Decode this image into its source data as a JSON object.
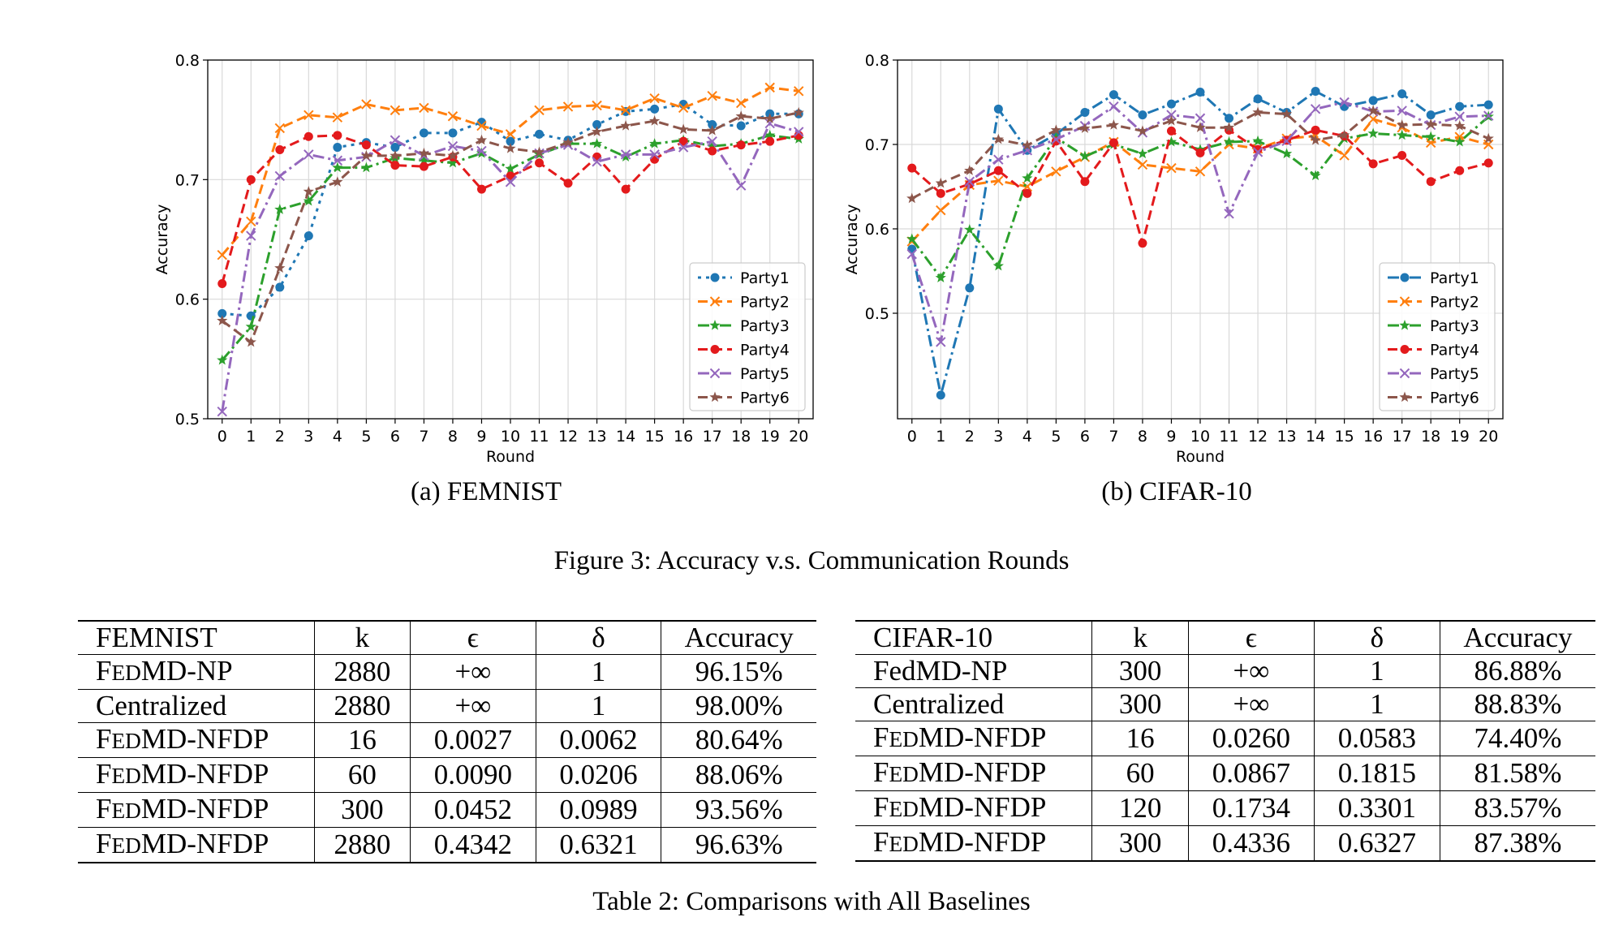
{
  "charts": {
    "a": {
      "ylabel": "Accuracy",
      "xlabel": "Round",
      "caption": "(a) FEMNIST"
    },
    "b": {
      "ylabel": "Accuracy",
      "xlabel": "Round",
      "caption": "(b) CIFAR-10"
    }
  },
  "chart_data": [
    {
      "type": "line",
      "xlabel": "Round",
      "ylabel": "Accuracy",
      "ylim": [
        0.5,
        0.8
      ],
      "yticks": [
        0.5,
        0.6,
        0.7,
        0.8
      ],
      "xlim": [
        -0.5,
        20.5
      ],
      "x": [
        0,
        1,
        2,
        3,
        4,
        5,
        6,
        7,
        8,
        9,
        10,
        11,
        12,
        13,
        14,
        15,
        16,
        17,
        18,
        19,
        20
      ],
      "grid": true,
      "legend": "bottom-right",
      "series": [
        {
          "name": "Party1",
          "color": "#1f77b4",
          "marker": "circle",
          "dash": "4 6",
          "values": [
            0.588,
            0.586,
            0.61,
            0.653,
            0.727,
            0.731,
            0.727,
            0.739,
            0.739,
            0.748,
            0.732,
            0.738,
            0.733,
            0.746,
            0.757,
            0.759,
            0.763,
            0.746,
            0.745,
            0.755,
            0.755
          ]
        },
        {
          "name": "Party2",
          "color": "#ff7f0e",
          "marker": "x",
          "dash": "12 6",
          "values": [
            0.637,
            0.665,
            0.743,
            0.754,
            0.752,
            0.763,
            0.758,
            0.76,
            0.753,
            0.745,
            0.738,
            0.758,
            0.761,
            0.762,
            0.758,
            0.768,
            0.76,
            0.77,
            0.764,
            0.777,
            0.774
          ]
        },
        {
          "name": "Party3",
          "color": "#2ca02c",
          "marker": "star",
          "dash": "14 5 3 5",
          "values": [
            0.549,
            0.577,
            0.675,
            0.682,
            0.71,
            0.71,
            0.718,
            0.716,
            0.714,
            0.722,
            0.709,
            0.721,
            0.73,
            0.73,
            0.719,
            0.73,
            0.733,
            0.728,
            0.73,
            0.737,
            0.734
          ]
        },
        {
          "name": "Party4",
          "color": "#e31a1c",
          "marker": "circle",
          "dash": "12 6",
          "values": [
            0.613,
            0.7,
            0.725,
            0.736,
            0.737,
            0.729,
            0.712,
            0.711,
            0.719,
            0.692,
            0.703,
            0.714,
            0.697,
            0.719,
            0.692,
            0.717,
            0.732,
            0.724,
            0.729,
            0.732,
            0.737
          ]
        },
        {
          "name": "Party5",
          "color": "#9467bd",
          "marker": "x",
          "dash": "14 5 3 5",
          "values": [
            0.506,
            0.653,
            0.703,
            0.721,
            0.716,
            0.719,
            0.733,
            0.72,
            0.728,
            0.724,
            0.698,
            0.722,
            0.729,
            0.715,
            0.721,
            0.721,
            0.727,
            0.732,
            0.695,
            0.747,
            0.74
          ]
        },
        {
          "name": "Party6",
          "color": "#8c564b",
          "marker": "star",
          "dash": "12 6",
          "values": [
            0.582,
            0.564,
            0.626,
            0.69,
            0.698,
            0.72,
            0.72,
            0.722,
            0.72,
            0.733,
            0.726,
            0.723,
            0.731,
            0.74,
            0.745,
            0.749,
            0.742,
            0.741,
            0.753,
            0.751,
            0.756
          ]
        }
      ]
    },
    {
      "type": "line",
      "xlabel": "Round",
      "ylabel": "Accuracy",
      "ylim": [
        0.375,
        0.8
      ],
      "yticks": [
        0.5,
        0.6,
        0.7,
        0.8
      ],
      "xlim": [
        -0.5,
        20.5
      ],
      "x": [
        0,
        1,
        2,
        3,
        4,
        5,
        6,
        7,
        8,
        9,
        10,
        11,
        12,
        13,
        14,
        15,
        16,
        17,
        18,
        19,
        20
      ],
      "grid": true,
      "legend": "bottom-right",
      "series": [
        {
          "name": "Party1",
          "color": "#1f77b4",
          "marker": "circle",
          "dash": "14 5 3 5",
          "values": [
            0.576,
            0.403,
            0.53,
            0.742,
            0.693,
            0.712,
            0.738,
            0.759,
            0.735,
            0.748,
            0.762,
            0.731,
            0.754,
            0.738,
            0.763,
            0.745,
            0.752,
            0.76,
            0.735,
            0.745,
            0.747
          ]
        },
        {
          "name": "Party2",
          "color": "#ff7f0e",
          "marker": "x",
          "dash": "12 6",
          "values": [
            0.585,
            0.622,
            0.652,
            0.657,
            0.65,
            0.668,
            0.685,
            0.703,
            0.676,
            0.672,
            0.668,
            0.7,
            0.695,
            0.707,
            0.71,
            0.687,
            0.73,
            0.72,
            0.702,
            0.709,
            0.7
          ]
        },
        {
          "name": "Party3",
          "color": "#2ca02c",
          "marker": "star",
          "dash": "14 5 3 5",
          "values": [
            0.588,
            0.542,
            0.599,
            0.556,
            0.66,
            0.708,
            0.686,
            0.7,
            0.689,
            0.703,
            0.694,
            0.703,
            0.704,
            0.689,
            0.663,
            0.707,
            0.713,
            0.711,
            0.709,
            0.703,
            0.733
          ]
        },
        {
          "name": "Party4",
          "color": "#e31a1c",
          "marker": "circle",
          "dash": "12 6",
          "values": [
            0.672,
            0.642,
            0.653,
            0.669,
            0.642,
            0.704,
            0.656,
            0.702,
            0.583,
            0.716,
            0.69,
            0.717,
            0.694,
            0.705,
            0.717,
            0.71,
            0.677,
            0.687,
            0.656,
            0.669,
            0.678
          ]
        },
        {
          "name": "Party5",
          "color": "#9467bd",
          "marker": "x",
          "dash": "14 5 3 5",
          "values": [
            0.57,
            0.466,
            0.656,
            0.682,
            0.693,
            0.706,
            0.722,
            0.745,
            0.714,
            0.735,
            0.731,
            0.618,
            0.691,
            0.704,
            0.742,
            0.75,
            0.739,
            0.74,
            0.723,
            0.733,
            0.734
          ]
        },
        {
          "name": "Party6",
          "color": "#8c564b",
          "marker": "star",
          "dash": "12 6",
          "values": [
            0.636,
            0.654,
            0.669,
            0.706,
            0.699,
            0.717,
            0.719,
            0.723,
            0.716,
            0.728,
            0.72,
            0.72,
            0.738,
            0.736,
            0.705,
            0.711,
            0.74,
            0.723,
            0.724,
            0.722,
            0.707
          ]
        }
      ]
    }
  ],
  "figure_caption": "Figure 3: Accuracy v.s. Communication Rounds",
  "table_femnist": {
    "header": [
      "FEMNIST",
      "k",
      "ϵ",
      "δ",
      "Accuracy"
    ],
    "rows": [
      [
        "FEDMD-NP",
        "2880",
        "+∞",
        "1",
        "96.15%"
      ],
      [
        "Centralized",
        "2880",
        "+∞",
        "1",
        "98.00%"
      ],
      [
        "FEDMD-NFDP",
        "16",
        "0.0027",
        "0.0062",
        "80.64%"
      ],
      [
        "FEDMD-NFDP",
        "60",
        "0.0090",
        "0.0206",
        "88.06%"
      ],
      [
        "FEDMD-NFDP",
        "300",
        "0.0452",
        "0.0989",
        "93.56%"
      ],
      [
        "FEDMD-NFDP",
        "2880",
        "0.4342",
        "0.6321",
        "96.63%"
      ]
    ]
  },
  "table_cifar": {
    "header": [
      "CIFAR-10",
      "k",
      "ϵ",
      "δ",
      "Accuracy"
    ],
    "rows": [
      [
        "FedMD-NP",
        "300",
        "+∞",
        "1",
        "86.88%"
      ],
      [
        "Centralized",
        "300",
        "+∞",
        "1",
        "88.83%"
      ],
      [
        "FEDMD-NFDP",
        "16",
        "0.0260",
        "0.0583",
        "74.40%"
      ],
      [
        "FEDMD-NFDP",
        "60",
        "0.0867",
        "0.1815",
        "81.58%"
      ],
      [
        "FEDMD-NFDP",
        "120",
        "0.1734",
        "0.3301",
        "83.57%"
      ],
      [
        "FEDMD-NFDP",
        "300",
        "0.4336",
        "0.6327",
        "87.38%"
      ]
    ]
  },
  "table_caption": "Table 2: Comparisons with All Baselines"
}
